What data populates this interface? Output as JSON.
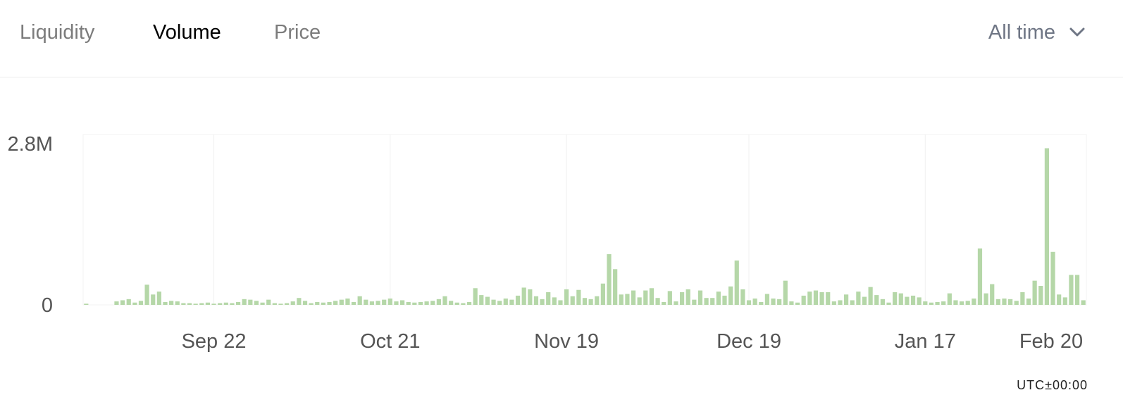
{
  "tabs": [
    {
      "label": "Liquidity",
      "active": false
    },
    {
      "label": "Volume",
      "active": true
    },
    {
      "label": "Price",
      "active": false
    }
  ],
  "range": {
    "label": "All time",
    "icon": "chevron-down-icon"
  },
  "timezone": "UTC±00:00",
  "colors": {
    "bar": "#b5d7a8",
    "grid": "#f0f0f0",
    "inactive_tab": "#7c7c7c",
    "active_tab": "#000000"
  },
  "chart_data": {
    "type": "bar",
    "start_date": "2021-09-01",
    "x_tick_labels": [
      "Sep 22",
      "Oct 21",
      "Nov 19",
      "Dec 19",
      "Jan 17",
      "Feb 20"
    ],
    "x_tick_dates": [
      "2021-09-22",
      "2021-10-21",
      "2021-11-19",
      "2021-12-19",
      "2022-01-17",
      "2022-02-20"
    ],
    "y_tick_labels": [
      "2.8M",
      "0"
    ],
    "y_tick_values": [
      2800000,
      0
    ],
    "ylim": [
      0,
      2800000
    ],
    "grid": true,
    "values": [
      0.02,
      0,
      0,
      0,
      0,
      0.06,
      0.08,
      0.1,
      0.04,
      0.07,
      0.35,
      0.18,
      0.23,
      0.05,
      0.07,
      0.06,
      0.03,
      0.03,
      0.02,
      0.03,
      0.04,
      0.02,
      0.03,
      0.04,
      0.03,
      0.05,
      0.1,
      0.09,
      0.07,
      0.04,
      0.09,
      0.03,
      0.02,
      0.03,
      0.06,
      0.12,
      0.07,
      0.03,
      0.05,
      0.04,
      0.05,
      0.07,
      0.09,
      0.11,
      0.05,
      0.15,
      0.09,
      0.06,
      0.07,
      0.09,
      0.11,
      0.06,
      0.08,
      0.05,
      0.04,
      0.05,
      0.06,
      0.07,
      0.1,
      0.15,
      0.07,
      0.04,
      0.03,
      0.05,
      0.29,
      0.17,
      0.14,
      0.09,
      0.07,
      0.11,
      0.09,
      0.16,
      0.3,
      0.27,
      0.15,
      0.1,
      0.22,
      0.13,
      0.08,
      0.27,
      0.15,
      0.26,
      0.12,
      0.1,
      0.15,
      0.37,
      0.88,
      0.62,
      0.18,
      0.19,
      0.25,
      0.13,
      0.25,
      0.29,
      0.12,
      0.05,
      0.24,
      0.06,
      0.22,
      0.27,
      0.09,
      0.25,
      0.12,
      0.12,
      0.23,
      0.16,
      0.32,
      0.77,
      0.27,
      0.08,
      0.11,
      0.05,
      0.19,
      0.11,
      0.1,
      0.42,
      0.06,
      0.04,
      0.16,
      0.23,
      0.25,
      0.22,
      0.22,
      0.06,
      0.08,
      0.18,
      0.08,
      0.23,
      0.14,
      0.31,
      0.17,
      0.1,
      0.04,
      0.22,
      0.2,
      0.14,
      0.16,
      0.13,
      0.06,
      0.04,
      0.05,
      0.06,
      0.2,
      0.08,
      0.06,
      0.07,
      0.11,
      0.98,
      0.2,
      0.36,
      0.1,
      0.11,
      0.1,
      0.07,
      0.22,
      0.11,
      0.42,
      0.33,
      2.72,
      0.92,
      0.18,
      0.13,
      0.52,
      0.52,
      0.08
    ]
  }
}
